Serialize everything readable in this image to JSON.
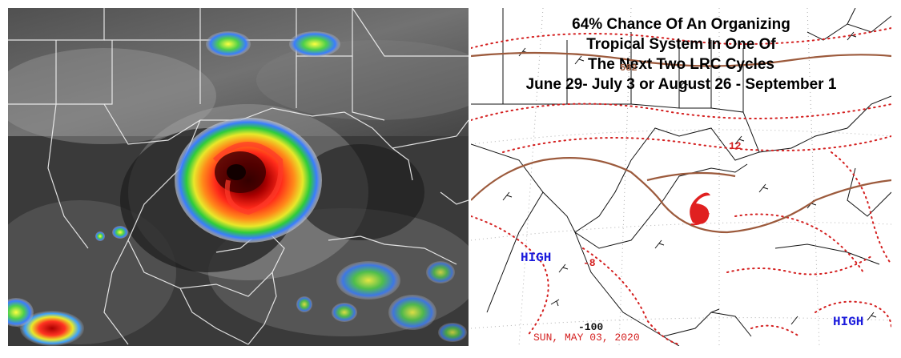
{
  "satellite_panel": {
    "description_icon": "hurricane-satellite-image"
  },
  "forecast_panel": {
    "headline": [
      "64% Chance Of An Organizing",
      "Tropical System In One Of",
      "The Next Two LRC Cycles",
      "June 29- July 3 or August 26 - September 1"
    ],
    "pressure_labels": {
      "high_west": "HIGH",
      "high_east": "HIGH",
      "value_neg8": "-8",
      "value_12": "12",
      "value_neg100": "-100",
      "value_582": "582"
    },
    "date_stamp": "SUN, MAY 03, 2020",
    "storm_icon": "tropical-storm-icon",
    "colors": {
      "high_text": "#1a1adc",
      "contour_dotted": "#d42020",
      "contour_solid": "#9c5a3c",
      "date_text": "#d42020"
    }
  }
}
